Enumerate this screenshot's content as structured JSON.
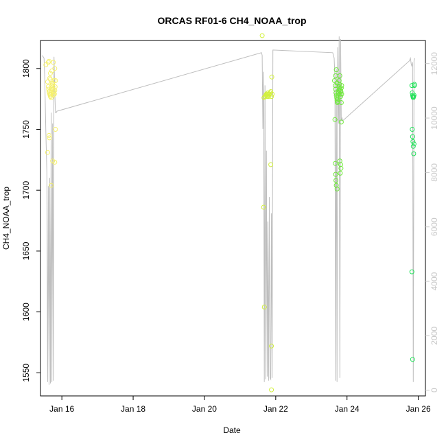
{
  "chart_data": {
    "type": "scatter",
    "title": "ORCAS RF01-6 CH4_NOAA_trop",
    "xlabel": "Date",
    "ylabel": "CH4_NOAA_trop",
    "xlim": [
      15.4,
      26.2
    ],
    "ylim": [
      1531,
      1823
    ],
    "x_ticks": [
      16,
      18,
      20,
      22,
      24,
      26
    ],
    "x_tick_labels": [
      "Jan 16",
      "Jan 18",
      "Jan 20",
      "Jan 22",
      "Jan 24",
      "Jan 26"
    ],
    "y_ticks": [
      1550,
      1600,
      1650,
      1700,
      1750,
      1800
    ],
    "y_tick_labels": [
      "1550",
      "1600",
      "1650",
      "1700",
      "1750",
      "1800"
    ],
    "y2lim": [
      -210,
      12850
    ],
    "y2_ticks": [
      0,
      2000,
      4000,
      6000,
      8000,
      10000,
      12000
    ],
    "y2_tick_labels": [
      "0",
      "2000",
      "4000",
      "6000",
      "8000",
      "10000",
      "12000"
    ],
    "grid": false,
    "colors": {
      "rf01": "#f5f06e",
      "rf02": "#d2f03c",
      "rf03": "#b0ee3a",
      "rf04": "#6ee83a",
      "rf05": "#46e446",
      "rf06": "#22e25a",
      "altitude_line": "#bebebe",
      "right_axis": "#c8c8c8"
    },
    "series": [
      {
        "color_key": "rf01",
        "x": [
          15.55,
          15.6,
          15.62,
          15.63,
          15.64,
          15.65,
          15.66,
          15.67,
          15.68,
          15.69,
          15.7,
          15.71,
          15.72,
          15.73,
          15.74,
          15.75,
          15.76,
          15.77,
          15.78,
          15.79,
          15.8,
          15.81,
          15.82,
          15.62,
          15.64,
          15.66,
          15.68,
          15.72,
          15.76,
          15.8,
          15.78,
          15.64,
          15.6,
          15.82,
          15.8,
          15.65,
          15.7,
          15.74,
          15.68,
          15.76,
          15.7
        ],
        "y": [
          1803,
          1789,
          1785,
          1783,
          1781,
          1780,
          1779,
          1778,
          1777,
          1779,
          1782,
          1784,
          1786,
          1788,
          1787,
          1785,
          1783,
          1781,
          1780,
          1779,
          1782,
          1785,
          1790,
          1805,
          1806,
          1792,
          1796,
          1798,
          1805,
          1800,
          1790,
          1745,
          1731,
          1750,
          1723,
          1743,
          1704,
          1724,
          1791,
          1778,
          1776
        ]
      },
      {
        "color_key": "rf02",
        "x": [
          21.62,
          21.67,
          21.7,
          21.72,
          21.74,
          21.75,
          21.76,
          21.77,
          21.78,
          21.79,
          21.8,
          21.82,
          21.84,
          21.86,
          21.88,
          21.9,
          21.66,
          21.68,
          21.86,
          21.88,
          21.88,
          21.89
        ],
        "y": [
          1827,
          1776,
          1777,
          1778,
          1779,
          1778,
          1777,
          1779,
          1780,
          1778,
          1777,
          1779,
          1780,
          1781,
          1777,
          1779,
          1686,
          1604,
          1721,
          1572,
          1536,
          1793
        ]
      },
      {
        "color_key": "rf04",
        "x": [
          23.65,
          23.67,
          23.68,
          23.69,
          23.7,
          23.71,
          23.72,
          23.73,
          23.74,
          23.75,
          23.76,
          23.77,
          23.78,
          23.79,
          23.8,
          23.81,
          23.82,
          23.83,
          23.84,
          23.85,
          23.68,
          23.7,
          23.72,
          23.74,
          23.78,
          23.8,
          23.82,
          23.84,
          23.66,
          23.67,
          23.68,
          23.69,
          23.7,
          23.72,
          23.8,
          23.82,
          23.83,
          23.81,
          23.84,
          23.85
        ],
        "y": [
          1790,
          1786,
          1783,
          1780,
          1778,
          1776,
          1774,
          1772,
          1775,
          1778,
          1780,
          1782,
          1785,
          1787,
          1783,
          1779,
          1777,
          1781,
          1784,
          1779,
          1794,
          1799,
          1788,
          1773,
          1790,
          1794,
          1782,
          1756,
          1758,
          1722,
          1713,
          1708,
          1704,
          1701,
          1724,
          1721,
          1718,
          1714,
          1772,
          1786
        ]
      },
      {
        "color_key": "rf06",
        "x": [
          25.82,
          25.83,
          25.84,
          25.85,
          25.86,
          25.87,
          25.88,
          25.89,
          25.83,
          25.84,
          25.85,
          25.86,
          25.87,
          25.88,
          25.89,
          25.82,
          25.84,
          25.86
        ],
        "y": [
          1786,
          1780,
          1778,
          1777,
          1776,
          1777,
          1778,
          1787,
          1750,
          1744,
          1740,
          1736,
          1730,
          1738,
          1786,
          1633,
          1561,
          1777
        ]
      }
    ],
    "altitude_line": {
      "x": [
        15.45,
        15.5,
        15.52,
        15.55,
        15.58,
        15.6,
        15.62,
        15.64,
        15.66,
        15.68,
        15.7,
        15.72,
        15.74,
        15.76,
        15.78,
        15.8,
        15.82,
        15.84,
        15.86,
        21.6,
        21.62,
        21.64,
        21.66,
        21.68,
        21.7,
        21.72,
        21.74,
        21.76,
        21.78,
        21.8,
        21.82,
        21.84,
        21.86,
        21.88,
        21.9,
        21.92,
        23.6,
        23.62,
        23.64,
        23.66,
        23.68,
        23.7,
        23.72,
        23.74,
        23.76,
        23.78,
        23.8,
        23.82,
        23.84,
        23.86,
        23.88,
        25.75,
        25.78,
        25.8,
        25.82,
        25.84,
        25.86,
        25.88,
        25.9
      ],
      "y": [
        12300,
        12200,
        11500,
        9500,
        8000,
        300,
        7500,
        200,
        7800,
        250,
        10200,
        300,
        9800,
        350,
        12250,
        11000,
        10200,
        10200,
        10250,
        12400,
        12300,
        9600,
        11700,
        300,
        11200,
        400,
        8800,
        500,
        6200,
        350,
        7100,
        450,
        400,
        6500,
        450,
        12500,
        12400,
        12300,
        12200,
        11500,
        350,
        11800,
        300,
        12600,
        9800,
        13000,
        450,
        12900,
        9900,
        10000,
        9900,
        12100,
        12200,
        12000,
        11900,
        12050,
        300,
        12100,
        12200
      ]
    }
  }
}
